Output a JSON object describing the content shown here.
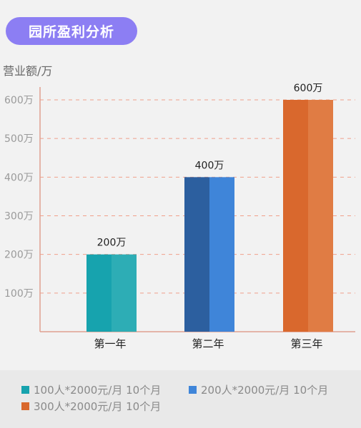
{
  "header": {
    "title": "园所盈利分析"
  },
  "chart_data": {
    "type": "bar",
    "title": "园所盈利分析",
    "ylabel": "营业额/万",
    "xlabel": "",
    "categories": [
      "第一年",
      "第二年",
      "第三年"
    ],
    "values": [
      200,
      400,
      600
    ],
    "value_labels": [
      "200万",
      "400万",
      "600万"
    ],
    "ylim": [
      0,
      650
    ],
    "yticks": [
      100,
      200,
      300,
      400,
      500,
      600
    ],
    "ytick_labels": [
      "100万",
      "200万",
      "300万",
      "400万",
      "500万",
      "600万"
    ],
    "grid": true,
    "legend_position": "bottom",
    "bar_colors": [
      {
        "dark": "#17a3ae",
        "light": "#2dadb5"
      },
      {
        "dark": "#2c5f9f",
        "light": "#3f85d9"
      },
      {
        "dark": "#d9682d",
        "light": "#e07c44"
      }
    ],
    "legend": [
      {
        "label": "100人*2000元/月  10个月",
        "color": "#17a3ae"
      },
      {
        "label": "200人*2000元/月  10个月",
        "color": "#3f85d9"
      },
      {
        "label": "300人*2000元/月  10个月",
        "color": "#d9682d"
      }
    ],
    "colors": {
      "axis": "#e0a090",
      "grid": "#f0a08a",
      "tick_text": "#9a9a9a",
      "label_text": "#222222"
    }
  }
}
